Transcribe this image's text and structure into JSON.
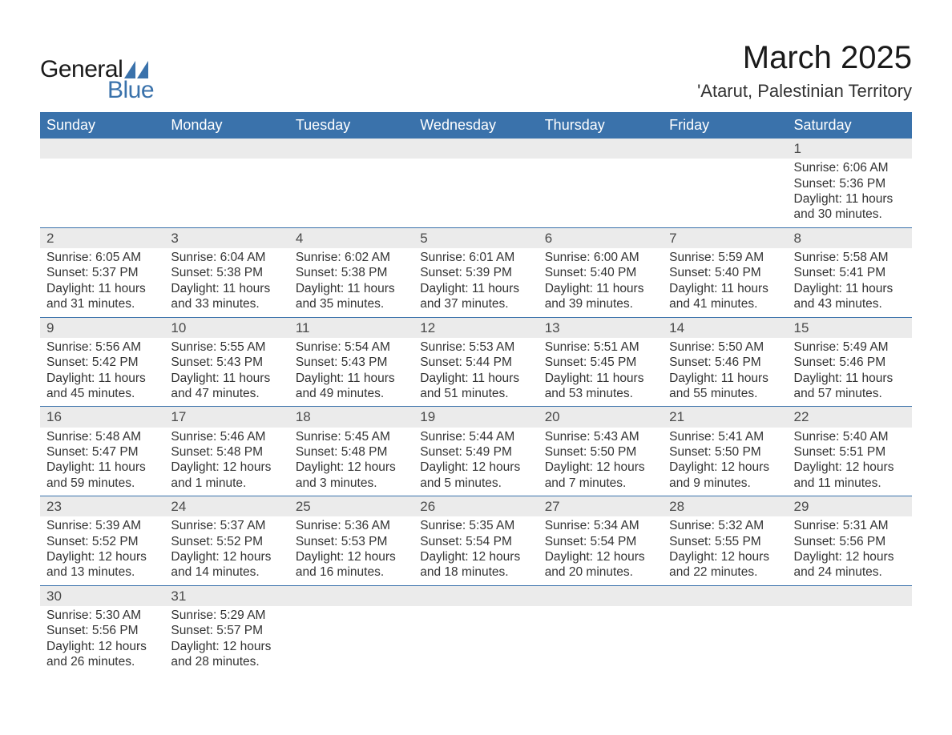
{
  "logo": {
    "text1": "General",
    "text2": "Blue",
    "tri_color": "#3a72ab"
  },
  "header": {
    "month": "March 2025",
    "location": "'Atarut, Palestinian Territory"
  },
  "colors": {
    "header_bg": "#3a72ab",
    "header_text": "#ffffff",
    "day_bg": "#ebebeb",
    "border": "#3a72ab",
    "text": "#333333"
  },
  "weekdays": [
    "Sunday",
    "Monday",
    "Tuesday",
    "Wednesday",
    "Thursday",
    "Friday",
    "Saturday"
  ],
  "weeks": [
    [
      null,
      null,
      null,
      null,
      null,
      null,
      {
        "n": "1",
        "sr": "Sunrise: 6:06 AM",
        "ss": "Sunset: 5:36 PM",
        "d1": "Daylight: 11 hours",
        "d2": "and 30 minutes."
      }
    ],
    [
      {
        "n": "2",
        "sr": "Sunrise: 6:05 AM",
        "ss": "Sunset: 5:37 PM",
        "d1": "Daylight: 11 hours",
        "d2": "and 31 minutes."
      },
      {
        "n": "3",
        "sr": "Sunrise: 6:04 AM",
        "ss": "Sunset: 5:38 PM",
        "d1": "Daylight: 11 hours",
        "d2": "and 33 minutes."
      },
      {
        "n": "4",
        "sr": "Sunrise: 6:02 AM",
        "ss": "Sunset: 5:38 PM",
        "d1": "Daylight: 11 hours",
        "d2": "and 35 minutes."
      },
      {
        "n": "5",
        "sr": "Sunrise: 6:01 AM",
        "ss": "Sunset: 5:39 PM",
        "d1": "Daylight: 11 hours",
        "d2": "and 37 minutes."
      },
      {
        "n": "6",
        "sr": "Sunrise: 6:00 AM",
        "ss": "Sunset: 5:40 PM",
        "d1": "Daylight: 11 hours",
        "d2": "and 39 minutes."
      },
      {
        "n": "7",
        "sr": "Sunrise: 5:59 AM",
        "ss": "Sunset: 5:40 PM",
        "d1": "Daylight: 11 hours",
        "d2": "and 41 minutes."
      },
      {
        "n": "8",
        "sr": "Sunrise: 5:58 AM",
        "ss": "Sunset: 5:41 PM",
        "d1": "Daylight: 11 hours",
        "d2": "and 43 minutes."
      }
    ],
    [
      {
        "n": "9",
        "sr": "Sunrise: 5:56 AM",
        "ss": "Sunset: 5:42 PM",
        "d1": "Daylight: 11 hours",
        "d2": "and 45 minutes."
      },
      {
        "n": "10",
        "sr": "Sunrise: 5:55 AM",
        "ss": "Sunset: 5:43 PM",
        "d1": "Daylight: 11 hours",
        "d2": "and 47 minutes."
      },
      {
        "n": "11",
        "sr": "Sunrise: 5:54 AM",
        "ss": "Sunset: 5:43 PM",
        "d1": "Daylight: 11 hours",
        "d2": "and 49 minutes."
      },
      {
        "n": "12",
        "sr": "Sunrise: 5:53 AM",
        "ss": "Sunset: 5:44 PM",
        "d1": "Daylight: 11 hours",
        "d2": "and 51 minutes."
      },
      {
        "n": "13",
        "sr": "Sunrise: 5:51 AM",
        "ss": "Sunset: 5:45 PM",
        "d1": "Daylight: 11 hours",
        "d2": "and 53 minutes."
      },
      {
        "n": "14",
        "sr": "Sunrise: 5:50 AM",
        "ss": "Sunset: 5:46 PM",
        "d1": "Daylight: 11 hours",
        "d2": "and 55 minutes."
      },
      {
        "n": "15",
        "sr": "Sunrise: 5:49 AM",
        "ss": "Sunset: 5:46 PM",
        "d1": "Daylight: 11 hours",
        "d2": "and 57 minutes."
      }
    ],
    [
      {
        "n": "16",
        "sr": "Sunrise: 5:48 AM",
        "ss": "Sunset: 5:47 PM",
        "d1": "Daylight: 11 hours",
        "d2": "and 59 minutes."
      },
      {
        "n": "17",
        "sr": "Sunrise: 5:46 AM",
        "ss": "Sunset: 5:48 PM",
        "d1": "Daylight: 12 hours",
        "d2": "and 1 minute."
      },
      {
        "n": "18",
        "sr": "Sunrise: 5:45 AM",
        "ss": "Sunset: 5:48 PM",
        "d1": "Daylight: 12 hours",
        "d2": "and 3 minutes."
      },
      {
        "n": "19",
        "sr": "Sunrise: 5:44 AM",
        "ss": "Sunset: 5:49 PM",
        "d1": "Daylight: 12 hours",
        "d2": "and 5 minutes."
      },
      {
        "n": "20",
        "sr": "Sunrise: 5:43 AM",
        "ss": "Sunset: 5:50 PM",
        "d1": "Daylight: 12 hours",
        "d2": "and 7 minutes."
      },
      {
        "n": "21",
        "sr": "Sunrise: 5:41 AM",
        "ss": "Sunset: 5:50 PM",
        "d1": "Daylight: 12 hours",
        "d2": "and 9 minutes."
      },
      {
        "n": "22",
        "sr": "Sunrise: 5:40 AM",
        "ss": "Sunset: 5:51 PM",
        "d1": "Daylight: 12 hours",
        "d2": "and 11 minutes."
      }
    ],
    [
      {
        "n": "23",
        "sr": "Sunrise: 5:39 AM",
        "ss": "Sunset: 5:52 PM",
        "d1": "Daylight: 12 hours",
        "d2": "and 13 minutes."
      },
      {
        "n": "24",
        "sr": "Sunrise: 5:37 AM",
        "ss": "Sunset: 5:52 PM",
        "d1": "Daylight: 12 hours",
        "d2": "and 14 minutes."
      },
      {
        "n": "25",
        "sr": "Sunrise: 5:36 AM",
        "ss": "Sunset: 5:53 PM",
        "d1": "Daylight: 12 hours",
        "d2": "and 16 minutes."
      },
      {
        "n": "26",
        "sr": "Sunrise: 5:35 AM",
        "ss": "Sunset: 5:54 PM",
        "d1": "Daylight: 12 hours",
        "d2": "and 18 minutes."
      },
      {
        "n": "27",
        "sr": "Sunrise: 5:34 AM",
        "ss": "Sunset: 5:54 PM",
        "d1": "Daylight: 12 hours",
        "d2": "and 20 minutes."
      },
      {
        "n": "28",
        "sr": "Sunrise: 5:32 AM",
        "ss": "Sunset: 5:55 PM",
        "d1": "Daylight: 12 hours",
        "d2": "and 22 minutes."
      },
      {
        "n": "29",
        "sr": "Sunrise: 5:31 AM",
        "ss": "Sunset: 5:56 PM",
        "d1": "Daylight: 12 hours",
        "d2": "and 24 minutes."
      }
    ],
    [
      {
        "n": "30",
        "sr": "Sunrise: 5:30 AM",
        "ss": "Sunset: 5:56 PM",
        "d1": "Daylight: 12 hours",
        "d2": "and 26 minutes."
      },
      {
        "n": "31",
        "sr": "Sunrise: 5:29 AM",
        "ss": "Sunset: 5:57 PM",
        "d1": "Daylight: 12 hours",
        "d2": "and 28 minutes."
      },
      null,
      null,
      null,
      null,
      null
    ]
  ]
}
